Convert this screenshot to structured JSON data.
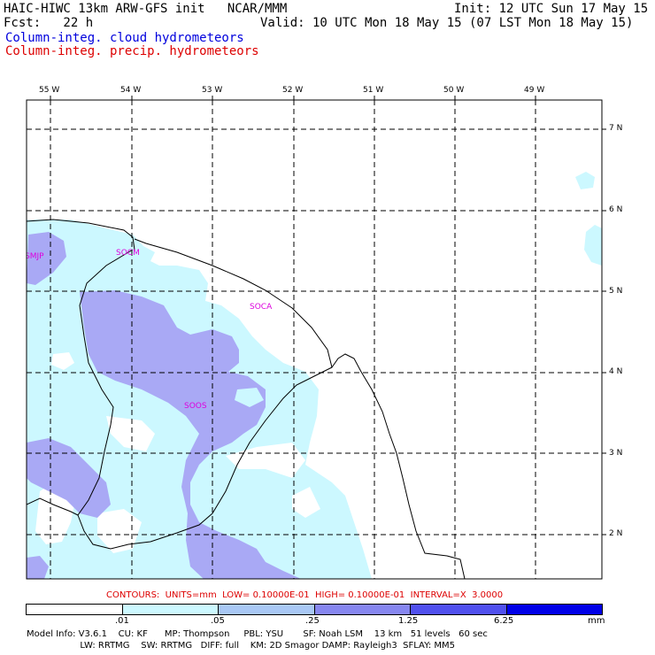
{
  "header": {
    "line1_left": "HAIC-HIWC 13km ARW-GFS init   NCAR/MMM",
    "line1_right": "Init: 12 UTC Sun 17 May 15",
    "line2_left": "Fcst:   22 h",
    "line2_right": "Valid: 10 UTC Mon 18 May 15 (07 LST Mon 18 May 15)",
    "field1": "Column-integ. cloud hydrometeors",
    "field2": "Column-integ. precip. hydrometeors"
  },
  "map": {
    "lon_labels": [
      "55 W",
      "54 W",
      "53 W",
      "52 W",
      "51 W",
      "50 W",
      "49 W"
    ],
    "lat_labels": [
      "7 N",
      "6 N",
      "5 N",
      "4 N",
      "3 N",
      "2 N"
    ],
    "sites": [
      "SMJP",
      "SOCM",
      "SOCA",
      "SOOS"
    ],
    "colors": {
      "cloud_light": "#ccf8ff",
      "cloud_medium": "#a9a9f5",
      "coast": "#000000"
    }
  },
  "contours": "CONTOURS:  UNITS=mm  LOW= 0.10000E-01  HIGH= 0.10000E-01  INTERVAL=X  3.0000",
  "colorbar": {
    "ticks": [
      ".01",
      ".05",
      ".25",
      "1.25",
      "6.25"
    ],
    "unit": "mm",
    "colors": [
      "#ffffff",
      "#ccf8ff",
      "#a9c8f5",
      "#8787f0",
      "#5050ee",
      "#0000e8",
      "#0000dd"
    ]
  },
  "footer": {
    "line1": "Model Info: V3.6.1    CU: KF      MP: Thompson     PBL: YSU       SF: Noah LSM    13 km   51 levels   60 sec",
    "line2": "                   LW: RRTMG    SW: RRTMG   DIFF: full    KM: 2D Smagor DAMP: Rayleigh3  SFLAY: MM5"
  }
}
